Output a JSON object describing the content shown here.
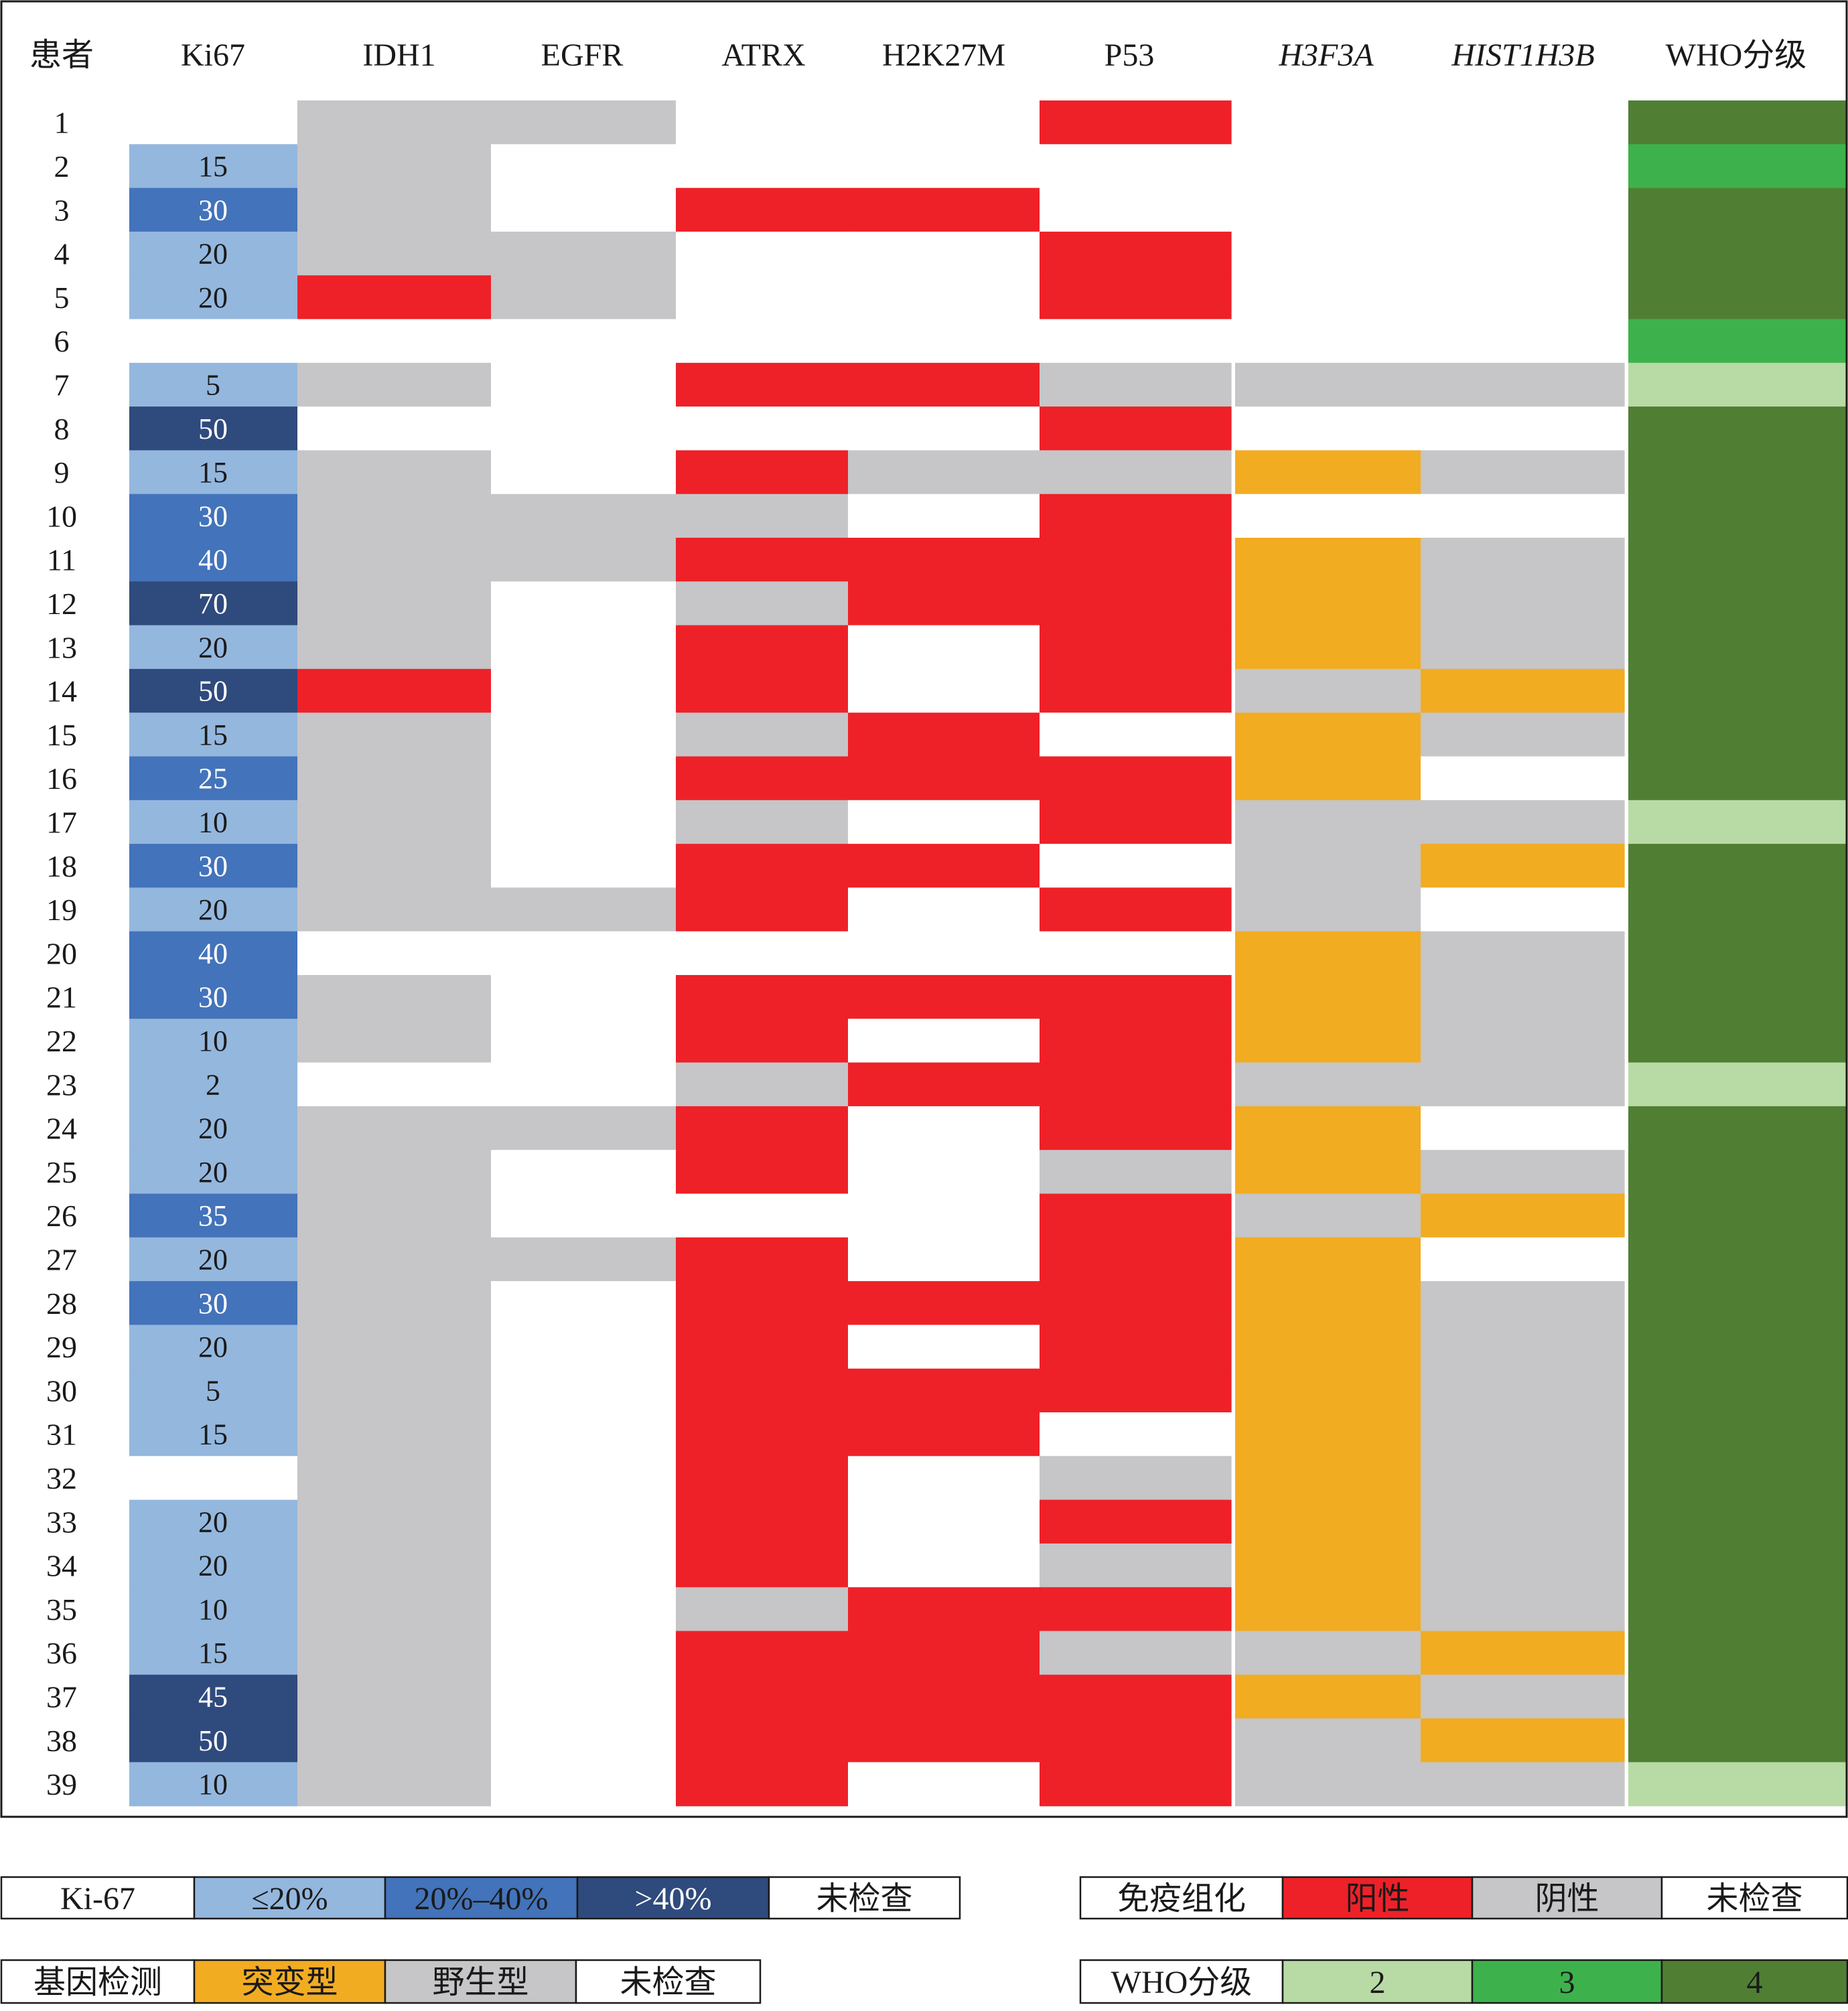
{
  "chart_data": {
    "type": "heatmap",
    "title": "",
    "columns": [
      {
        "key": "patient",
        "label": "患者",
        "italic": false
      },
      {
        "key": "ki67",
        "label": "Ki67",
        "italic": false
      },
      {
        "key": "idh1",
        "label": "IDH1",
        "italic": false
      },
      {
        "key": "egfr",
        "label": "EGFR",
        "italic": false
      },
      {
        "key": "atrx",
        "label": "ATRX",
        "italic": false
      },
      {
        "key": "h2k27m",
        "label": "H2K27M",
        "italic": false
      },
      {
        "key": "p53",
        "label": "P53",
        "italic": false
      },
      {
        "key": "h3f3a",
        "label": "H3F3A",
        "italic": true
      },
      {
        "key": "hist1h3b",
        "label": "HIST1H3B",
        "italic": true
      },
      {
        "key": "who",
        "label": "WHO分级",
        "italic": false
      }
    ],
    "patients": [
      "1",
      "2",
      "3",
      "4",
      "5",
      "6",
      "7",
      "8",
      "9",
      "10",
      "11",
      "12",
      "13",
      "14",
      "15",
      "16",
      "17",
      "18",
      "19",
      "20",
      "21",
      "22",
      "23",
      "24",
      "25",
      "26",
      "27",
      "28",
      "29",
      "30",
      "31",
      "32",
      "33",
      "34",
      "35",
      "36",
      "37",
      "38",
      "39"
    ],
    "ki67": [
      null,
      15,
      30,
      20,
      20,
      null,
      5,
      50,
      15,
      30,
      40,
      70,
      20,
      50,
      15,
      25,
      10,
      30,
      20,
      40,
      30,
      10,
      2,
      20,
      20,
      35,
      20,
      30,
      20,
      5,
      15,
      null,
      20,
      20,
      10,
      15,
      45,
      50,
      10
    ],
    "ki67_labels": [
      "",
      "15",
      "30",
      "20",
      "20",
      "",
      "5",
      "50",
      "15",
      "30",
      "40",
      "70",
      "20",
      "50",
      "15",
      "25",
      "10",
      "30",
      "20",
      "40",
      "30",
      "10",
      "2",
      "20",
      "20",
      "35",
      "20",
      "30",
      "20",
      "5",
      "15",
      "",
      "20",
      "20",
      "10",
      "15",
      "45",
      "50",
      "10"
    ],
    "idh1": [
      "N",
      "N",
      "N",
      "N",
      "P",
      "U",
      "N",
      "U",
      "N",
      "N",
      "N",
      "N",
      "N",
      "P",
      "N",
      "N",
      "N",
      "N",
      "N",
      "U",
      "N",
      "N",
      "U",
      "N",
      "N",
      "N",
      "N",
      "N",
      "N",
      "N",
      "N",
      "N",
      "N",
      "N",
      "N",
      "N",
      "N",
      "N",
      "N"
    ],
    "egfr": [
      "N",
      "U",
      "U",
      "N",
      "N",
      "U",
      "U",
      "U",
      "U",
      "N",
      "N",
      "U",
      "U",
      "U",
      "U",
      "U",
      "U",
      "U",
      "N",
      "U",
      "U",
      "U",
      "U",
      "N",
      "U",
      "U",
      "N",
      "U",
      "U",
      "U",
      "U",
      "U",
      "U",
      "U",
      "U",
      "U",
      "U",
      "U",
      "U"
    ],
    "atrx": [
      "U",
      "U",
      "P",
      "U",
      "U",
      "U",
      "P",
      "U",
      "P",
      "N",
      "P",
      "N",
      "P",
      "P",
      "N",
      "P",
      "N",
      "P",
      "P",
      "U",
      "P",
      "P",
      "N",
      "P",
      "P",
      "U",
      "P",
      "P",
      "P",
      "P",
      "P",
      "P",
      "P",
      "P",
      "N",
      "P",
      "P",
      "P",
      "P"
    ],
    "h2k27m": [
      "U",
      "U",
      "P",
      "U",
      "U",
      "U",
      "P",
      "U",
      "N",
      "U",
      "P",
      "P",
      "U",
      "U",
      "P",
      "P",
      "U",
      "P",
      "U",
      "U",
      "P",
      "U",
      "P",
      "U",
      "U",
      "U",
      "U",
      "P",
      "U",
      "P",
      "P",
      "U",
      "U",
      "U",
      "P",
      "P",
      "P",
      "P",
      "U"
    ],
    "p53": [
      "P",
      "U",
      "U",
      "P",
      "P",
      "U",
      "N",
      "P",
      "N",
      "P",
      "P",
      "P",
      "P",
      "P",
      "U",
      "P",
      "P",
      "U",
      "P",
      "U",
      "P",
      "P",
      "P",
      "P",
      "N",
      "P",
      "P",
      "P",
      "P",
      "P",
      "U",
      "N",
      "P",
      "N",
      "P",
      "N",
      "P",
      "P",
      "P"
    ],
    "h3f3a": [
      "U",
      "U",
      "U",
      "U",
      "U",
      "U",
      "W",
      "U",
      "M",
      "U",
      "M",
      "M",
      "M",
      "W",
      "M",
      "M",
      "W",
      "W",
      "W",
      "M",
      "M",
      "M",
      "W",
      "M",
      "M",
      "W",
      "M",
      "M",
      "M",
      "M",
      "M",
      "M",
      "M",
      "M",
      "M",
      "W",
      "M",
      "W",
      "W"
    ],
    "hist1h3b": [
      "U",
      "U",
      "U",
      "U",
      "U",
      "U",
      "W",
      "U",
      "W",
      "U",
      "W",
      "W",
      "W",
      "M",
      "W",
      "U",
      "W",
      "M",
      "U",
      "W",
      "W",
      "W",
      "W",
      "U",
      "W",
      "M",
      "U",
      "W",
      "W",
      "W",
      "W",
      "W",
      "W",
      "W",
      "W",
      "M",
      "W",
      "M",
      "W"
    ],
    "who": [
      4,
      3,
      4,
      4,
      4,
      3,
      2,
      4,
      4,
      4,
      4,
      4,
      4,
      4,
      4,
      4,
      2,
      4,
      4,
      4,
      4,
      4,
      2,
      4,
      4,
      4,
      4,
      4,
      4,
      4,
      4,
      4,
      4,
      4,
      4,
      4,
      4,
      4,
      2
    ],
    "colors": {
      "ki67_low": "#94b7de",
      "ki67_mid": "#4373ba",
      "ki67_high": "#2f4a7c",
      "ihc_positive": "#ee2128",
      "ihc_negative": "#c6c5c7",
      "gene_mutant": "#f2ac22",
      "gene_wildtype": "#c6c5c7",
      "who_2": "#b8dba5",
      "who_3": "#3db24c",
      "who_4": "#507f34",
      "not_tested": "#ffffff"
    }
  },
  "legends": {
    "ki67": {
      "title": "Ki-67",
      "items": [
        "≤20%",
        "20%–40%",
        ">40%",
        "未检查"
      ]
    },
    "ihc": {
      "title": "免疫组化",
      "items": [
        "阳性",
        "阴性",
        "未检查"
      ]
    },
    "gene": {
      "title": "基因检测",
      "items": [
        "突变型",
        "野生型",
        "未检查"
      ]
    },
    "who": {
      "title": "WHO分级",
      "items": [
        "2",
        "3",
        "4"
      ]
    }
  }
}
